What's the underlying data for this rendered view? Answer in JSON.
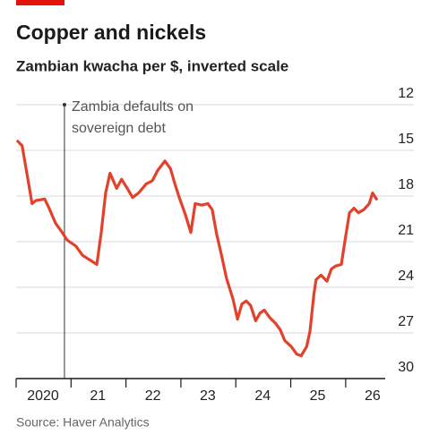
{
  "chart_data": {
    "type": "line",
    "title": "Copper and nickels",
    "subtitle": "Zambian kwacha per $, inverted scale",
    "source": "Source: Haver Analytics",
    "inverted": true,
    "grid": true,
    "events": [
      {
        "x": 2020.88,
        "label": [
          "Zambia defaults on",
          "sovereign debt"
        ]
      }
    ],
    "xlim": [
      2020,
      2026.72
    ],
    "xticks": [
      {
        "value": 2020,
        "label": "2020"
      },
      {
        "value": 2021,
        "label": "21"
      },
      {
        "value": 2022,
        "label": "22"
      },
      {
        "value": 2023,
        "label": "23"
      },
      {
        "value": 2024,
        "label": "24"
      },
      {
        "value": 2025,
        "label": "25"
      },
      {
        "value": 2026,
        "label": "26"
      }
    ],
    "ylim": [
      12,
      30
    ],
    "yticks": [
      12,
      15,
      18,
      21,
      24,
      27,
      30
    ],
    "x": [
      2020.03,
      2020.11,
      2020.29,
      2020.36,
      2020.52,
      2020.6,
      2020.72,
      2020.82,
      2020.93,
      2021.09,
      2021.21,
      2021.34,
      2021.47,
      2021.55,
      2021.63,
      2021.71,
      2021.83,
      2021.92,
      2022.04,
      2022.12,
      2022.23,
      2022.37,
      2022.48,
      2022.58,
      2022.71,
      2022.81,
      2022.89,
      2022.97,
      2023.08,
      2023.18,
      2023.26,
      2023.38,
      2023.49,
      2023.57,
      2023.65,
      2023.74,
      2023.83,
      2023.95,
      2024.03,
      2024.11,
      2024.19,
      2024.27,
      2024.36,
      2024.44,
      2024.52,
      2024.62,
      2024.73,
      2024.81,
      2024.89,
      2025.01,
      2025.11,
      2025.19,
      2025.29,
      2025.35,
      2025.42,
      2025.46,
      2025.55,
      2025.66,
      2025.74,
      2025.82,
      2025.92,
      2025.99,
      2026.07,
      2026.15,
      2026.23,
      2026.33,
      2026.43,
      2026.49,
      2026.56
    ],
    "series": [
      {
        "color": "#e3412b",
        "values": [
          14.4,
          14.7,
          18.5,
          18.3,
          18.2,
          18.8,
          19.8,
          20.3,
          20.9,
          21.3,
          21.9,
          22.2,
          22.5,
          20.4,
          17.8,
          16.5,
          17.5,
          16.9,
          17.6,
          18.1,
          17.8,
          17.2,
          17.0,
          16.3,
          15.7,
          16.2,
          17.2,
          18.1,
          19.2,
          20.4,
          18.5,
          18.6,
          18.5,
          18.9,
          20.5,
          21.9,
          23.4,
          24.8,
          26.1,
          25.1,
          24.9,
          25.2,
          26.2,
          25.7,
          25.5,
          26.0,
          26.4,
          26.8,
          27.5,
          27.9,
          28.4,
          28.5,
          27.9,
          26.9,
          24.5,
          23.5,
          23.2,
          23.6,
          22.8,
          22.6,
          22.5,
          20.9,
          19.1,
          18.8,
          19.1,
          18.9,
          18.5,
          17.8,
          18.2
        ]
      }
    ]
  }
}
